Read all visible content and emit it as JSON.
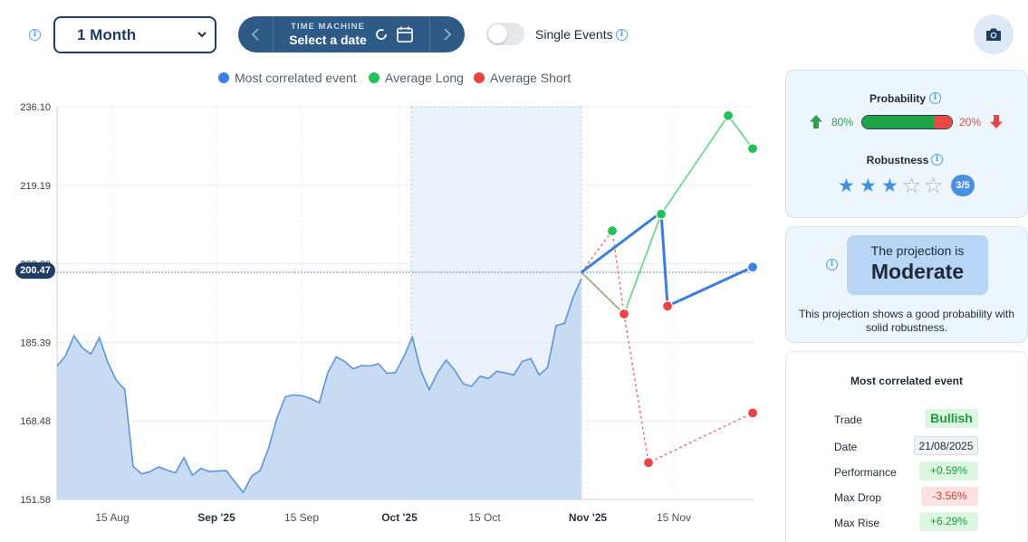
{
  "toolbar": {
    "period": "1 Month",
    "time_machine_label": "TIME MACHINE",
    "time_machine_value": "Select a date",
    "single_events_label": "Single Events",
    "single_events_on": false
  },
  "legend": [
    {
      "label": "Most correlated event",
      "color": "#3b82e6"
    },
    {
      "label": "Average Long",
      "color": "#22c05a"
    },
    {
      "label": "Average Short",
      "color": "#ea4343"
    }
  ],
  "chart_data": {
    "type": "area",
    "y_ticks": [
      "236.10",
      "219.19",
      "202.29",
      "185.39",
      "168.48",
      "151.58"
    ],
    "ylim": [
      151.58,
      236.1
    ],
    "x_ticks": [
      {
        "label": "15 Aug",
        "bold": false
      },
      {
        "label": "Sep '25",
        "bold": true
      },
      {
        "label": "15 Sep",
        "bold": false
      },
      {
        "label": "Oct '25",
        "bold": true
      },
      {
        "label": "15 Oct",
        "bold": false
      },
      {
        "label": "Nov '25",
        "bold": true
      },
      {
        "label": "15 Nov",
        "bold": false
      }
    ],
    "current_price": "200.47",
    "price_series": [
      180.3,
      182.5,
      186.8,
      184.2,
      182.9,
      186.4,
      181.1,
      177.2,
      175.3,
      158.7,
      157.1,
      157.6,
      158.6,
      157.9,
      157.3,
      160.6,
      156.8,
      158.3,
      157.6,
      157.7,
      157.8,
      155.4,
      153.1,
      156.6,
      157.8,
      162.6,
      169.1,
      173.7,
      174.1,
      173.9,
      173.3,
      172.4,
      178.8,
      182.3,
      181.3,
      179.7,
      180.4,
      180.3,
      180.8,
      178.7,
      178.9,
      182.3,
      186.5,
      179.3,
      175.2,
      178.9,
      181.6,
      179.4,
      176.5,
      175.9,
      178.1,
      177.6,
      179.2,
      178.8,
      178.4,
      181.3,
      181.9,
      178.4,
      180.0,
      189.0,
      189.5,
      195.1,
      199.1
    ],
    "projections": {
      "most_correlated": [
        200.47,
        213.4,
        193.2,
        201.6
      ],
      "average_long": [
        200.47,
        191.5,
        213.0,
        234.2,
        227.1
      ],
      "average_short": [
        200.47,
        191.5,
        159.5,
        170.2
      ],
      "average_long_early": [
        200.47,
        209.4
      ],
      "average_short_early": [
        200.47,
        209.4
      ]
    }
  },
  "probability": {
    "title": "Probability",
    "long_pct": "80%",
    "short_pct": "20%",
    "long_fraction": 0.8,
    "robustness_title": "Robustness",
    "robustness_value": "3/5",
    "robustness_stars": 3
  },
  "projection": {
    "prefix": "The projection is",
    "level": "Moderate",
    "description": "This projection shows a good probability with solid robustness."
  },
  "most_correlated_event": {
    "title": "Most correlated event",
    "rows": [
      {
        "label": "Trade",
        "value": "Bullish",
        "bg": "#dcf6e1",
        "fg": "#1b9c3f",
        "bold": true
      },
      {
        "label": "Date",
        "value": "21/08/2025",
        "bg": "#f1f3f5",
        "fg": "#1f2a37",
        "bold": false
      },
      {
        "label": "Performance",
        "value": "+0.59%",
        "bg": "#dcf6e1",
        "fg": "#1b9c3f",
        "bold": false
      },
      {
        "label": "Max Drop",
        "value": "-3.56%",
        "bg": "#fde2e2",
        "fg": "#d63a3a",
        "bold": false
      },
      {
        "label": "Max Rise",
        "value": "+6.29%",
        "bg": "#dcf6e1",
        "fg": "#1b9c3f",
        "bold": false
      }
    ]
  }
}
